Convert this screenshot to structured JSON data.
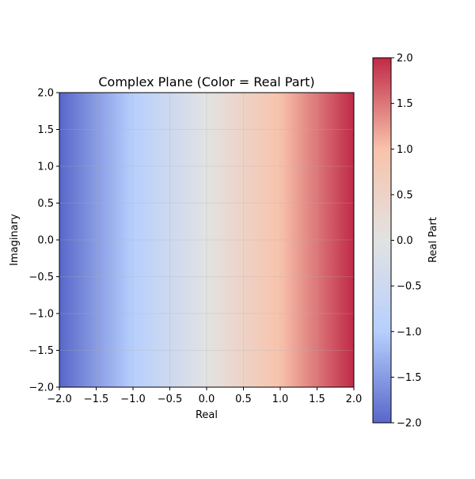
{
  "chart_data": {
    "type": "heatmap",
    "title": "Complex Plane (Color = Real Part)",
    "xlabel": "Real",
    "ylabel": "Imaginary",
    "xlim": [
      -2.0,
      2.0
    ],
    "ylim": [
      -2.0,
      2.0
    ],
    "xticks": [
      "−2.0",
      "−1.5",
      "−1.0",
      "−0.5",
      "0.0",
      "0.5",
      "1.0",
      "1.5",
      "2.0"
    ],
    "yticks": [
      "−2.0",
      "−1.5",
      "−1.0",
      "−0.5",
      "0.0",
      "0.5",
      "1.0",
      "1.5",
      "2.0"
    ],
    "xtick_values": [
      -2.0,
      -1.5,
      -1.0,
      -0.5,
      0.0,
      0.5,
      1.0,
      1.5,
      2.0
    ],
    "ytick_values": [
      -2.0,
      -1.5,
      -1.0,
      -0.5,
      0.0,
      0.5,
      1.0,
      1.5,
      2.0
    ],
    "grid": true,
    "colormap": "coolwarm",
    "value_function": "real part of z = x + iy",
    "colorbar": {
      "label": "Real Part",
      "range": [
        -2.0,
        2.0
      ],
      "ticks": [
        "−2.0",
        "−1.5",
        "−1.0",
        "−0.5",
        "0.0",
        "0.5",
        "1.0",
        "1.5",
        "2.0"
      ],
      "tick_values": [
        -2.0,
        -1.5,
        -1.0,
        -0.5,
        0.0,
        0.5,
        1.0,
        1.5,
        2.0
      ]
    },
    "colors": {
      "low": "#3b4cc0",
      "mid_low": "#aac7fd",
      "mid": "#dddddd",
      "mid_high": "#f7b89c",
      "high": "#b40426"
    }
  }
}
